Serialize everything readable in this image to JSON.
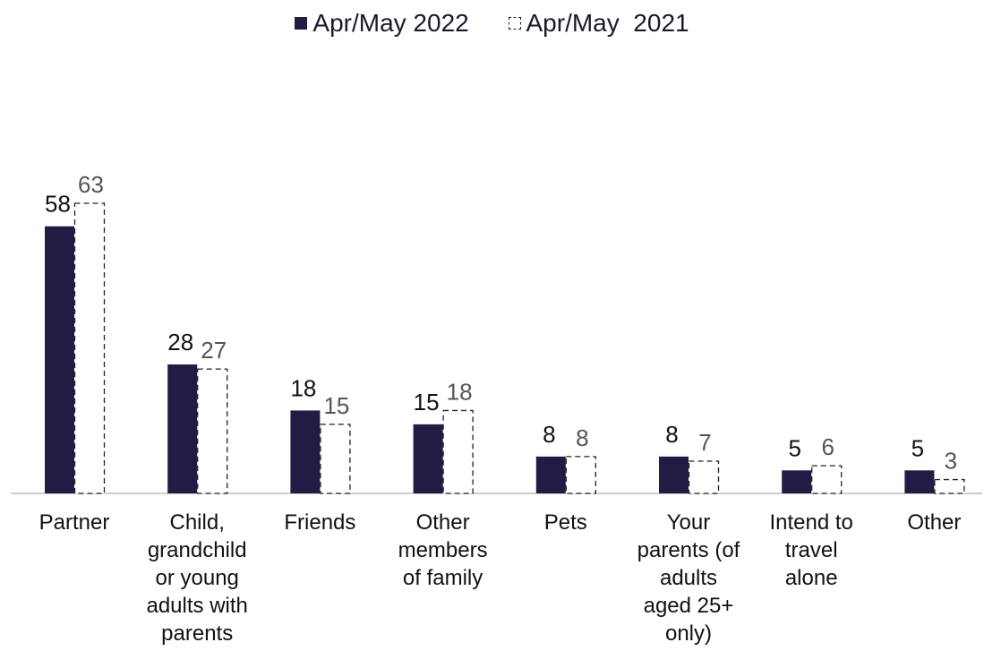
{
  "chart_data": {
    "type": "bar",
    "categories": [
      "Partner",
      "Child, grandchild or young adults with parents",
      "Friends",
      "Other members of family",
      "Pets",
      "Your parents (of adults aged 25+ only)",
      "Intend to travel alone",
      "Other"
    ],
    "category_lines": [
      [
        "Partner"
      ],
      [
        "Child,",
        "grandchild",
        "or young",
        "adults with",
        "parents"
      ],
      [
        "Friends"
      ],
      [
        "Other",
        "members",
        "of family"
      ],
      [
        "Pets"
      ],
      [
        "Your",
        "parents (of",
        "adults",
        "aged 25+",
        "only)"
      ],
      [
        "Intend to",
        "travel",
        "alone"
      ],
      [
        "Other"
      ]
    ],
    "series": [
      {
        "name": "Apr/May 2022",
        "values": [
          58,
          28,
          18,
          15,
          8,
          8,
          5,
          5
        ],
        "color": "#221c44",
        "style": "solid"
      },
      {
        "name": "Apr/May  2021",
        "values": [
          63,
          27,
          15,
          18,
          8,
          7,
          6,
          3
        ],
        "color": "#ffffff",
        "style": "dashed"
      }
    ],
    "title": "",
    "xlabel": "",
    "ylabel": "",
    "ylim": [
      0,
      63
    ],
    "grid": false,
    "legend_position": "top"
  }
}
